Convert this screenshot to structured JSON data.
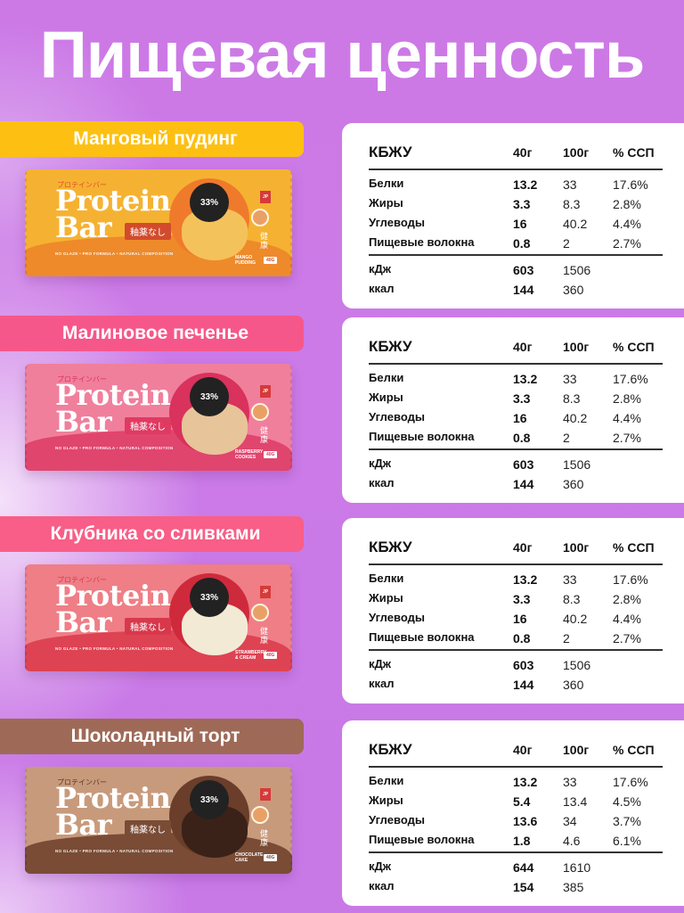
{
  "title": "Пищевая ценность",
  "table_headers": {
    "name": "КБЖУ",
    "per40": "40г",
    "per100": "100г",
    "ssp": "% ССП"
  },
  "products": [
    {
      "flavor": "Манговый пудинг",
      "label_color": "#fdc012",
      "package": {
        "kana": "プロテインバー",
        "brand_line1": "Protein",
        "brand_line2": "Bar",
        "tag": "釉薬なし",
        "tagline": "NO GLAZE • PRO FORMULA • NATURAL COMPOSITION",
        "badge": "33%",
        "jp_logo": "JP",
        "kanji": "健康",
        "flavor_name": "MANGO PUDDING",
        "weight": "40G",
        "colors": {
          "base": "#f5b232",
          "wave": "#ee8a2a",
          "circle": "#f07a2c",
          "tag": "#d24b2c",
          "food": "#f4c25a",
          "kana": "#e0502a"
        }
      },
      "nutrition": [
        {
          "name": "Белки",
          "per40": "13.2",
          "per100": "33",
          "ssp": "17.6%"
        },
        {
          "name": "Жиры",
          "per40": "3.3",
          "per100": "8.3",
          "ssp": "2.8%"
        },
        {
          "name": "Углеводы",
          "per40": "16",
          "per100": "40.2",
          "ssp": "4.4%"
        },
        {
          "name": "Пищевые волокна",
          "per40": "0.8",
          "per100": "2",
          "ssp": "2.7%"
        }
      ],
      "energy": [
        {
          "name": "кДж",
          "per40": "603",
          "per100": "1506"
        },
        {
          "name": "ккал",
          "per40": "144",
          "per100": "360"
        }
      ]
    },
    {
      "flavor": "Малиновое печенье",
      "label_color": "#f6578b",
      "package": {
        "kana": "プロテインバー",
        "brand_line1": "Protein",
        "brand_line2": "Bar",
        "tag": "釉薬なし",
        "tagline": "NO GLAZE • PRO FORMULA • NATURAL COMPOSITION",
        "badge": "33%",
        "jp_logo": "JP",
        "kanji": "健康",
        "flavor_name": "RASPBERRY COOKIES",
        "weight": "40G",
        "colors": {
          "base": "#f07f9c",
          "wave": "#e0456e",
          "circle": "#d8325d",
          "tag": "#e03a62",
          "food": "#e8c49a",
          "kana": "#d8325d"
        }
      },
      "nutrition": [
        {
          "name": "Белки",
          "per40": "13.2",
          "per100": "33",
          "ssp": "17.6%"
        },
        {
          "name": "Жиры",
          "per40": "3.3",
          "per100": "8.3",
          "ssp": "2.8%"
        },
        {
          "name": "Углеводы",
          "per40": "16",
          "per100": "40.2",
          "ssp": "4.4%"
        },
        {
          "name": "Пищевые волокна",
          "per40": "0.8",
          "per100": "2",
          "ssp": "2.7%"
        }
      ],
      "energy": [
        {
          "name": "кДж",
          "per40": "603",
          "per100": "1506"
        },
        {
          "name": "ккал",
          "per40": "144",
          "per100": "360"
        }
      ]
    },
    {
      "flavor": "Клубника со сливками",
      "label_color": "#f85e87",
      "package": {
        "kana": "プロテインバー",
        "brand_line1": "Protein",
        "brand_line2": "Bar",
        "tag": "釉薬なし",
        "tagline": "NO GLAZE • PRO FORMULA • NATURAL COMPOSITION",
        "badge": "33%",
        "jp_logo": "JP",
        "kanji": "健康",
        "flavor_name": "STRAWBERRY & CREAM",
        "weight": "40G",
        "colors": {
          "base": "#ef7e86",
          "wave": "#de4353",
          "circle": "#cf2a3c",
          "tag": "#d8384b",
          "food": "#f3ead6",
          "kana": "#d8384b"
        }
      },
      "nutrition": [
        {
          "name": "Белки",
          "per40": "13.2",
          "per100": "33",
          "ssp": "17.6%"
        },
        {
          "name": "Жиры",
          "per40": "3.3",
          "per100": "8.3",
          "ssp": "2.8%"
        },
        {
          "name": "Углеводы",
          "per40": "16",
          "per100": "40.2",
          "ssp": "4.4%"
        },
        {
          "name": "Пищевые волокна",
          "per40": "0.8",
          "per100": "2",
          "ssp": "2.7%"
        }
      ],
      "energy": [
        {
          "name": "кДж",
          "per40": "603",
          "per100": "1506"
        },
        {
          "name": "ккал",
          "per40": "144",
          "per100": "360"
        }
      ]
    },
    {
      "flavor": "Шоколадный торт",
      "label_color": "#9e6a57",
      "package": {
        "kana": "プロテインバー",
        "brand_line1": "Protein",
        "brand_line2": "Bar",
        "tag": "釉薬なし",
        "tagline": "NO GLAZE • PRO FORMULA • NATURAL COMPOSITION",
        "badge": "33%",
        "jp_logo": "JP",
        "kanji": "健康",
        "flavor_name": "CHOCOLATE CAKE",
        "weight": "40G",
        "colors": {
          "base": "#c89a7c",
          "wave": "#7a4c36",
          "circle": "#6a3e2a",
          "tag": "#7a4c36",
          "food": "#3a2218",
          "kana": "#5a3424"
        }
      },
      "nutrition": [
        {
          "name": "Белки",
          "per40": "13.2",
          "per100": "33",
          "ssp": "17.6%"
        },
        {
          "name": "Жиры",
          "per40": "5.4",
          "per100": "13.4",
          "ssp": "4.5%"
        },
        {
          "name": "Углеводы",
          "per40": "13.6",
          "per100": "34",
          "ssp": "3.7%"
        },
        {
          "name": "Пищевые волокна",
          "per40": "1.8",
          "per100": "4.6",
          "ssp": "6.1%"
        }
      ],
      "energy": [
        {
          "name": "кДж",
          "per40": "644",
          "per100": "1610"
        },
        {
          "name": "ккал",
          "per40": "154",
          "per100": "385"
        }
      ]
    }
  ]
}
